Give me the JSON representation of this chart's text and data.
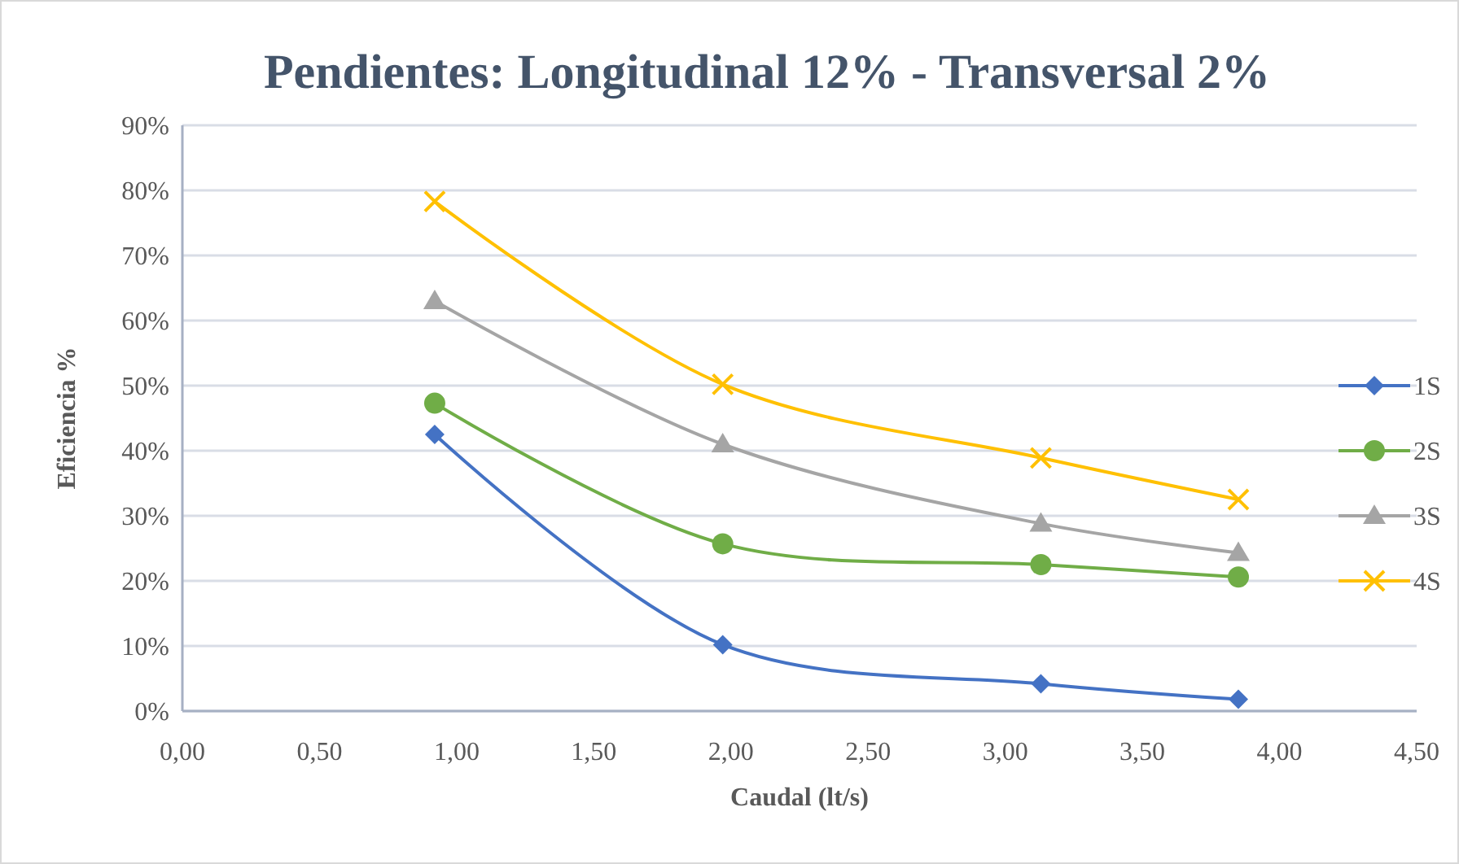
{
  "chart_data": {
    "type": "line",
    "title": "Pendientes: Longitudinal 12% - Transversal  2%",
    "xlabel": "Caudal (lt/s)",
    "ylabel": "Eficiencia %",
    "x": [
      0.92,
      1.97,
      3.13,
      3.85
    ],
    "series": [
      {
        "name": "1S",
        "color": "#4472c4",
        "marker": "diamond",
        "values": [
          42.5,
          10.2,
          4.2,
          1.8
        ]
      },
      {
        "name": "2S",
        "color": "#70ad47",
        "marker": "circle",
        "values": [
          47.3,
          25.7,
          22.5,
          20.6
        ]
      },
      {
        "name": "3S",
        "color": "#a5a5a5",
        "marker": "triangle",
        "values": [
          63,
          41,
          28.8,
          24.3
        ]
      },
      {
        "name": "4S",
        "color": "#ffc000",
        "marker": "cross",
        "values": [
          78.3,
          50.2,
          38.9,
          32.5
        ]
      }
    ],
    "xlim": [
      0,
      4.5
    ],
    "ylim": [
      0,
      90
    ],
    "xticks": [
      {
        "value": 0,
        "label": "0,00"
      },
      {
        "value": 0.5,
        "label": "0,50"
      },
      {
        "value": 1,
        "label": "1,00"
      },
      {
        "value": 1.5,
        "label": "1,50"
      },
      {
        "value": 2,
        "label": "2,00"
      },
      {
        "value": 2.5,
        "label": "2,50"
      },
      {
        "value": 3,
        "label": "3,00"
      },
      {
        "value": 3.5,
        "label": "3,50"
      },
      {
        "value": 4,
        "label": "4,00"
      },
      {
        "value": 4.5,
        "label": "4,50"
      }
    ],
    "yticks": [
      {
        "value": 0,
        "label": "0%"
      },
      {
        "value": 10,
        "label": "10%"
      },
      {
        "value": 20,
        "label": "20%"
      },
      {
        "value": 30,
        "label": "30%"
      },
      {
        "value": 40,
        "label": "40%"
      },
      {
        "value": 50,
        "label": "50%"
      },
      {
        "value": 60,
        "label": "60%"
      },
      {
        "value": 70,
        "label": "70%"
      },
      {
        "value": 80,
        "label": "80%"
      },
      {
        "value": 90,
        "label": "90%"
      }
    ],
    "grid": "y",
    "legend": "right",
    "line_style": "solid"
  }
}
